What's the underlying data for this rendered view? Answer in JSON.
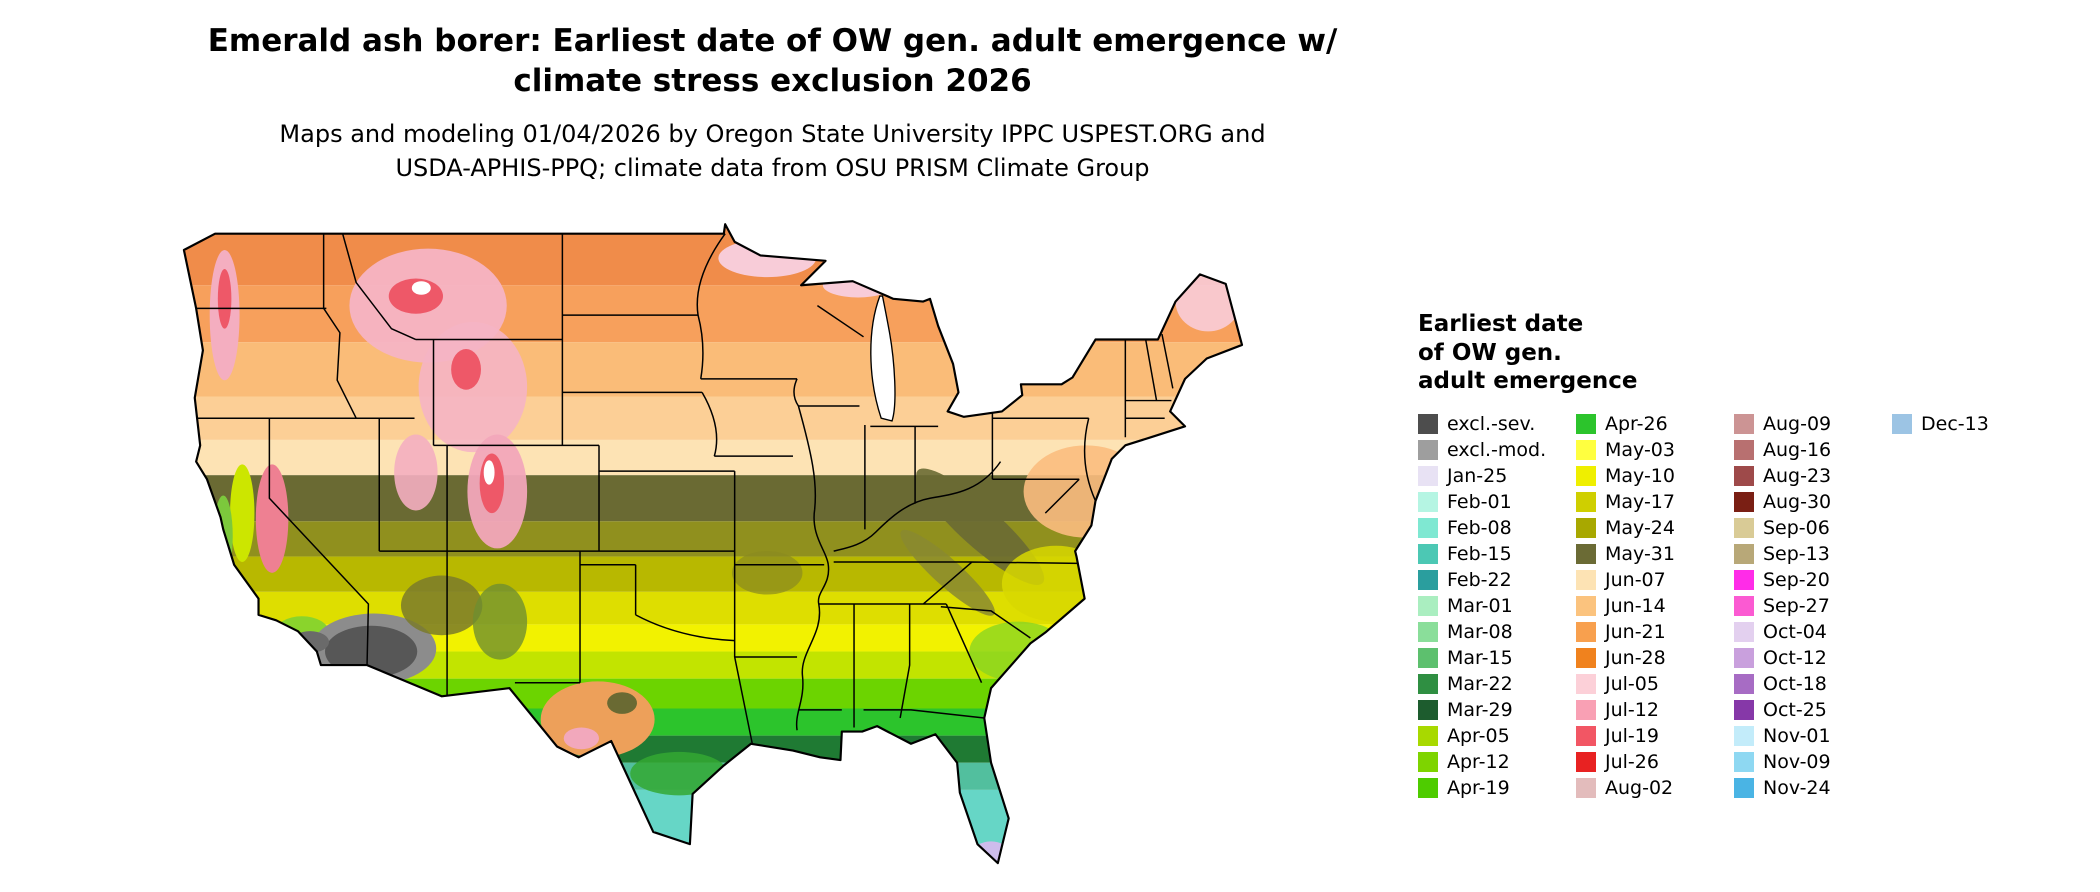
{
  "header": {
    "title_line1": "Emerald ash borer: Earliest date of OW gen. adult emergence w/",
    "title_line2": "climate stress exclusion 2026",
    "subtitle_line1": "Maps and modeling 01/04/2026 by Oregon State University IPPC USPEST.ORG and",
    "subtitle_line2": "USDA-APHIS-PPQ; climate data from OSU PRISM Climate Group"
  },
  "legend": {
    "title_lines": [
      "Earliest date",
      "of OW gen.",
      "adult emergence"
    ],
    "columns": [
      {
        "entries": [
          {
            "label": "excl.-sev.",
            "color": "#4d4d4d"
          },
          {
            "label": "excl.-mod.",
            "color": "#9e9e9e"
          },
          {
            "label": "Jan-25",
            "color": "#e8e2f4"
          },
          {
            "label": "Feb-01",
            "color": "#b5f5e3"
          },
          {
            "label": "Feb-08",
            "color": "#7fe8d2"
          },
          {
            "label": "Feb-15",
            "color": "#4cc8b4"
          },
          {
            "label": "Feb-22",
            "color": "#2a9e9e"
          },
          {
            "label": "Mar-01",
            "color": "#aaeec0"
          },
          {
            "label": "Mar-08",
            "color": "#8ade9a"
          },
          {
            "label": "Mar-15",
            "color": "#5dc06e"
          },
          {
            "label": "Mar-22",
            "color": "#2f8f42"
          },
          {
            "label": "Mar-29",
            "color": "#1d5c2e"
          },
          {
            "label": "Apr-05",
            "color": "#a8d900"
          },
          {
            "label": "Apr-12",
            "color": "#7ed400"
          },
          {
            "label": "Apr-19",
            "color": "#4ecc00"
          }
        ]
      },
      {
        "entries": [
          {
            "label": "Apr-26",
            "color": "#2cc42c"
          },
          {
            "label": "May-03",
            "color": "#ffff40"
          },
          {
            "label": "May-10",
            "color": "#efef00"
          },
          {
            "label": "May-17",
            "color": "#cfcf00"
          },
          {
            "label": "May-24",
            "color": "#a8a800"
          },
          {
            "label": "May-31",
            "color": "#6b6b35"
          },
          {
            "label": "Jun-07",
            "color": "#fde3b4"
          },
          {
            "label": "Jun-14",
            "color": "#fbc37e"
          },
          {
            "label": "Jun-21",
            "color": "#f8a04e"
          },
          {
            "label": "Jun-28",
            "color": "#f0821e"
          },
          {
            "label": "Jul-05",
            "color": "#fcd0d8"
          },
          {
            "label": "Jul-12",
            "color": "#f9a0b4"
          },
          {
            "label": "Jul-19",
            "color": "#f25664"
          },
          {
            "label": "Jul-26",
            "color": "#e82222"
          },
          {
            "label": "Aug-02",
            "color": "#e3bcbc"
          }
        ]
      },
      {
        "entries": [
          {
            "label": "Aug-09",
            "color": "#cc9494"
          },
          {
            "label": "Aug-16",
            "color": "#b87070"
          },
          {
            "label": "Aug-23",
            "color": "#9e4a4a"
          },
          {
            "label": "Aug-30",
            "color": "#7a1f14"
          },
          {
            "label": "Sep-06",
            "color": "#d9cb96"
          },
          {
            "label": "Sep-13",
            "color": "#b8a878"
          },
          {
            "label": "Sep-20",
            "color": "#ff2ce8"
          },
          {
            "label": "Sep-27",
            "color": "#fb5ad2"
          },
          {
            "label": "Oct-04",
            "color": "#e3d0ef"
          },
          {
            "label": "Oct-12",
            "color": "#c9a0dd"
          },
          {
            "label": "Oct-18",
            "color": "#a76cc4"
          },
          {
            "label": "Oct-25",
            "color": "#8638a8"
          },
          {
            "label": "Nov-01",
            "color": "#c3ecfa"
          },
          {
            "label": "Nov-09",
            "color": "#8ed8f2"
          },
          {
            "label": "Nov-24",
            "color": "#4ab4e4"
          }
        ]
      },
      {
        "entries": [
          {
            "label": "Dec-13",
            "color": "#9cc4e4"
          }
        ]
      }
    ]
  }
}
